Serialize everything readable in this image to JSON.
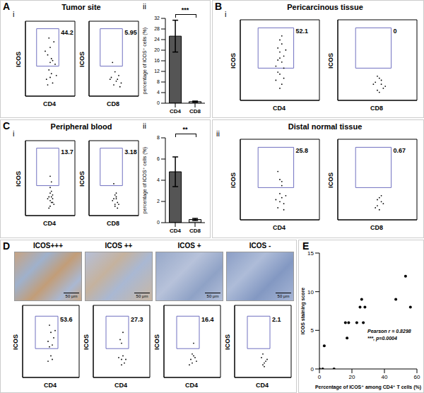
{
  "chart_data": [
    {
      "type": "flow",
      "panel": "A",
      "subpanel": "i",
      "title": "Tumor site",
      "ylabel": "ICOS",
      "xlim": [
        0,
        4
      ],
      "ylim": [
        0,
        4
      ],
      "tick_labels": false,
      "color": "#000000",
      "plots": [
        {
          "xlabel": "CD4",
          "x": [
            1.8,
            2.0,
            2.2,
            1.9,
            2.1,
            2.3,
            1.7,
            2.0,
            2.4,
            1.6,
            2.2,
            1.9,
            2.1,
            2.5,
            1.8,
            2.0
          ],
          "values": [
            2.2,
            2.6,
            1.9,
            1.4,
            1.2,
            2.9,
            0.9,
            1.0,
            1.7,
            2.4,
            0.7,
            3.1,
            2.0,
            1.1,
            0.6,
            1.8
          ],
          "gate": {
            "x": [
              0.9,
              2.7
            ],
            "y": [
              1.6,
              3.6
            ],
            "percent": 44.2
          }
        },
        {
          "xlabel": "CD8",
          "x": [
            2.0,
            2.3,
            1.8,
            2.5,
            2.1,
            2.2,
            1.9,
            2.4,
            2.6,
            1.7
          ],
          "values": [
            0.6,
            0.9,
            1.0,
            0.5,
            1.3,
            0.8,
            1.8,
            1.1,
            0.7,
            0.9
          ],
          "gate": {
            "x": [
              0.9,
              2.7
            ],
            "y": [
              1.6,
              3.6
            ],
            "percent": 5.95
          }
        }
      ]
    },
    {
      "type": "bar",
      "subpanel": "ii",
      "ylabel": "percentage of ICOS⁺ cells (%)",
      "categories": [
        "CD4",
        "CD8"
      ],
      "values": [
        25.3,
        0.6
      ],
      "errors": [
        6,
        0.2
      ],
      "ylim": [
        0,
        32
      ],
      "yticks": [
        0,
        4,
        8,
        12,
        16,
        20,
        24,
        28,
        32
      ],
      "colors": [
        "#555555",
        "#dddddd"
      ],
      "significance": "***"
    },
    {
      "type": "flow",
      "panel": "B",
      "subpanel": "i",
      "title": "Pericarcinous tissue",
      "ylabel": "ICOS",
      "xlim": [
        0,
        4
      ],
      "ylim": [
        0,
        4
      ],
      "tick_labels": false,
      "color": "#000000",
      "plots": [
        {
          "xlabel": "CD4",
          "x": [
            1.9,
            2.0,
            2.1,
            2.2,
            1.8,
            2.0,
            2.1,
            1.9,
            2.3,
            2.0,
            2.2,
            1.8,
            2.1,
            2.0,
            1.9,
            2.2,
            2.1,
            2.0
          ],
          "values": [
            2.0,
            2.4,
            2.8,
            2.2,
            1.7,
            3.0,
            1.9,
            2.6,
            2.5,
            1.3,
            1.1,
            1.0,
            0.8,
            0.6,
            1.4,
            1.6,
            3.2,
            2.1
          ],
          "gate": {
            "x": [
              0.9,
              2.7
            ],
            "y": [
              1.6,
              3.6
            ],
            "percent": 52.1
          }
        },
        {
          "xlabel": "CD8",
          "x": [
            2.0,
            2.2,
            1.9,
            2.3,
            2.1,
            2.4,
            2.0,
            1.8,
            2.2,
            2.1
          ],
          "values": [
            0.5,
            0.8,
            0.9,
            0.6,
            1.1,
            0.7,
            1.2,
            0.8,
            1.0,
            0.4
          ],
          "gate": {
            "x": [
              0.9,
              2.7
            ],
            "y": [
              1.6,
              3.6
            ],
            "percent": 0
          }
        }
      ]
    },
    {
      "type": "flow",
      "panel": "C",
      "subpanel": "i",
      "title": "Peripheral blood",
      "ylabel": "ICOS",
      "xlim": [
        0,
        4
      ],
      "ylim": [
        0,
        4
      ],
      "tick_labels": false,
      "color": "#000000",
      "plots": [
        {
          "xlabel": "CD4",
          "x": [
            2.0,
            2.1,
            2.2,
            1.9,
            2.0,
            2.3,
            2.1,
            2.0,
            1.8,
            2.2,
            2.1,
            2.0,
            1.9,
            2.2,
            2.1,
            2.0
          ],
          "values": [
            0.5,
            0.7,
            0.9,
            1.0,
            1.2,
            0.6,
            1.3,
            0.8,
            0.9,
            1.1,
            1.8,
            2.1,
            0.4,
            0.7,
            1.0,
            1.5
          ],
          "gate": {
            "x": [
              0.9,
              2.7
            ],
            "y": [
              1.6,
              3.6
            ],
            "percent": 13.7
          }
        },
        {
          "xlabel": "CD8",
          "x": [
            2.1,
            2.3,
            2.0,
            2.2,
            2.4,
            1.9,
            2.2,
            2.1,
            2.3,
            2.0,
            2.2,
            2.1
          ],
          "values": [
            0.5,
            0.7,
            0.9,
            1.0,
            0.6,
            0.8,
            1.2,
            1.1,
            0.4,
            1.7,
            0.9,
            0.6
          ],
          "gate": {
            "x": [
              0.9,
              2.7
            ],
            "y": [
              1.6,
              3.6
            ],
            "percent": 3.18
          }
        }
      ]
    },
    {
      "type": "bar",
      "subpanel": "ii",
      "ylabel": "percentage of ICOS⁺ cells (%)",
      "categories": [
        "CD4",
        "CD8"
      ],
      "values": [
        4.8,
        0.3
      ],
      "errors": [
        1.4,
        0.1
      ],
      "ylim": [
        0,
        8
      ],
      "yticks": [
        0,
        2,
        4,
        6,
        8
      ],
      "colors": [
        "#555555",
        "#dddddd"
      ],
      "significance": "**"
    },
    {
      "type": "flow",
      "subpanel": "ii",
      "title": "Distal normal tissue",
      "ylabel": "ICOS",
      "xlim": [
        0,
        4
      ],
      "ylim": [
        0,
        4
      ],
      "tick_labels": false,
      "color": "#000000",
      "plots": [
        {
          "xlabel": "CD4",
          "x": [
            1.9,
            2.0,
            2.1,
            2.2,
            2.0,
            1.8,
            2.1,
            2.3,
            2.0,
            1.9,
            2.2,
            2.1
          ],
          "values": [
            0.6,
            0.9,
            1.1,
            0.8,
            1.3,
            1.0,
            1.7,
            1.2,
            2.0,
            2.4,
            0.5,
            1.9
          ],
          "gate": {
            "x": [
              0.9,
              2.7
            ],
            "y": [
              1.6,
              3.6
            ],
            "percent": 25.8
          }
        },
        {
          "xlabel": "CD8",
          "x": [
            2.0,
            2.2,
            2.1,
            1.9,
            2.3,
            2.1,
            2.0,
            2.2
          ],
          "values": [
            0.7,
            0.9,
            1.1,
            0.6,
            0.8,
            0.5,
            1.0,
            1.2
          ],
          "gate": {
            "x": [
              0.9,
              2.7
            ],
            "y": [
              1.6,
              3.6
            ],
            "percent": 0.67
          }
        }
      ]
    },
    {
      "type": "ihc_flow",
      "panel": "D",
      "ylabel": "ICOS",
      "xlim": [
        0,
        4
      ],
      "ylim": [
        0,
        4
      ],
      "tick_labels": false,
      "color": "#000000",
      "images": [
        {
          "label": "ICOS+++",
          "scale_bar": "50 μm"
        },
        {
          "label": "ICOS ++",
          "scale_bar": "50 μm"
        },
        {
          "label": "ICOS +",
          "scale_bar": "50 μm"
        },
        {
          "label": "ICOS -",
          "scale_bar": "50 μm"
        }
      ],
      "plots": [
        {
          "xlabel": "CD4",
          "x": [
            1.8,
            2.0,
            2.1,
            1.9,
            2.2,
            2.0,
            1.8,
            2.1,
            2.3,
            1.9
          ],
          "values": [
            2.0,
            2.5,
            1.8,
            2.9,
            2.2,
            1.2,
            0.9,
            1.0,
            2.6,
            1.7
          ],
          "gate": {
            "x": [
              0.9,
              2.5
            ],
            "y": [
              1.6,
              3.4
            ],
            "percent": 53.6
          }
        },
        {
          "xlabel": "CD4",
          "x": [
            2.0,
            2.1,
            1.9,
            2.2,
            2.0,
            1.8,
            2.1,
            2.3,
            2.0
          ],
          "values": [
            1.0,
            1.2,
            2.1,
            0.8,
            1.9,
            1.1,
            2.5,
            1.0,
            0.7
          ],
          "gate": {
            "x": [
              0.9,
              2.5
            ],
            "y": [
              1.6,
              3.4
            ],
            "percent": 27.3
          }
        },
        {
          "xlabel": "CD4",
          "x": [
            2.0,
            2.2,
            1.9,
            2.1,
            2.3,
            2.0,
            1.8,
            2.1
          ],
          "values": [
            0.8,
            1.1,
            1.0,
            1.9,
            0.9,
            1.3,
            0.7,
            1.2
          ],
          "gate": {
            "x": [
              0.9,
              2.5
            ],
            "y": [
              1.6,
              3.4
            ],
            "percent": 16.4
          }
        },
        {
          "xlabel": "CD4",
          "x": [
            2.0,
            2.2,
            1.9,
            2.1,
            2.3,
            2.0,
            2.1
          ],
          "values": [
            0.7,
            0.9,
            1.1,
            0.6,
            1.0,
            1.3,
            0.8
          ],
          "gate": {
            "x": [
              0.9,
              2.5
            ],
            "y": [
              1.6,
              3.4
            ],
            "percent": 2.1
          }
        }
      ]
    },
    {
      "type": "scatter",
      "panel": "E",
      "xlabel": "Percentage of ICOS⁺ among CD4⁺ T cells (%)",
      "ylabel": "ICOS staining score",
      "x": [
        0,
        2,
        3,
        9,
        16,
        17,
        18,
        23,
        25,
        26,
        27,
        28,
        47,
        53,
        56
      ],
      "values": [
        0,
        0,
        3,
        0,
        6,
        4,
        6,
        6,
        8,
        9,
        6,
        8,
        9,
        12,
        8
      ],
      "xlim": [
        0,
        60
      ],
      "xticks": [
        0,
        20,
        40,
        60
      ],
      "ylim": [
        0,
        15
      ],
      "yticks": [
        0,
        5,
        10,
        15
      ],
      "color": "#000000",
      "annotations": [
        "Pearson r = 0.8298",
        "***, p=0.0004"
      ]
    }
  ]
}
